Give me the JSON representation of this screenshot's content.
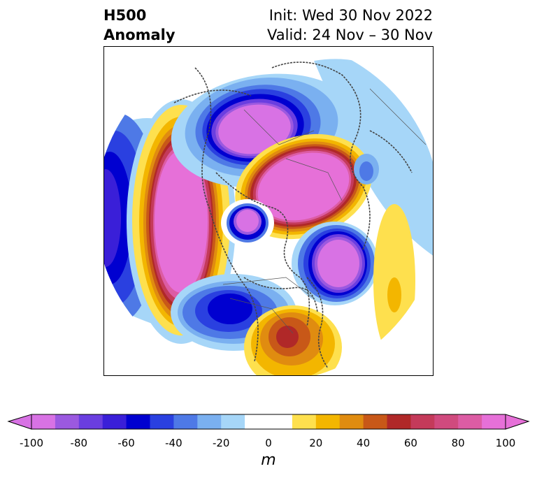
{
  "title": {
    "left_line1": "H500",
    "left_line2": "Anomaly",
    "right_line1": "Init: Wed 30 Nov 2022",
    "right_line2": "Valid: 24 Nov – 30 Nov"
  },
  "map": {
    "projection": "north-polar-stereographic",
    "variable": "500 hPa geopotential height anomaly",
    "features": [
      {
        "name": "positive-anomaly-north-pacific",
        "sign": "positive",
        "magnitude_m": 100
      },
      {
        "name": "negative-anomaly-siberia",
        "sign": "negative",
        "magnitude_m": -100
      },
      {
        "name": "positive-anomaly-greenland-arctic",
        "sign": "positive",
        "magnitude_m": 100
      },
      {
        "name": "negative-anomaly-hudson-bay",
        "sign": "negative",
        "magnitude_m": -100
      },
      {
        "name": "negative-anomaly-north-atlantic",
        "sign": "negative",
        "magnitude_m": -100
      },
      {
        "name": "negative-anomaly-western-north-america",
        "sign": "negative",
        "magnitude_m": -70
      },
      {
        "name": "positive-anomaly-southeast-us",
        "sign": "positive",
        "magnitude_m": 60
      },
      {
        "name": "negative-anomaly-west-pacific",
        "sign": "negative",
        "magnitude_m": -90
      },
      {
        "name": "positive-anomaly-eastern-atlantic",
        "sign": "positive",
        "magnitude_m": 20
      }
    ]
  },
  "colorbar": {
    "unit": "m",
    "min": -100,
    "max": 100,
    "extend": "both",
    "ticks": [
      "-100",
      "-80",
      "-60",
      "-40",
      "-20",
      "0",
      "20",
      "40",
      "60",
      "80",
      "100"
    ],
    "colors": [
      "#d872e4",
      "#9b59e0",
      "#6a3ee0",
      "#3a1fd8",
      "#0000d0",
      "#2a40e0",
      "#4e79e6",
      "#7ab0f0",
      "#a6d6f8",
      "#ffffff",
      "#ffffff",
      "#fee04e",
      "#f3b600",
      "#e08c10",
      "#c85818",
      "#b02828",
      "#c43a5a",
      "#d04a7e",
      "#dc5ca4",
      "#e670d8"
    ]
  }
}
